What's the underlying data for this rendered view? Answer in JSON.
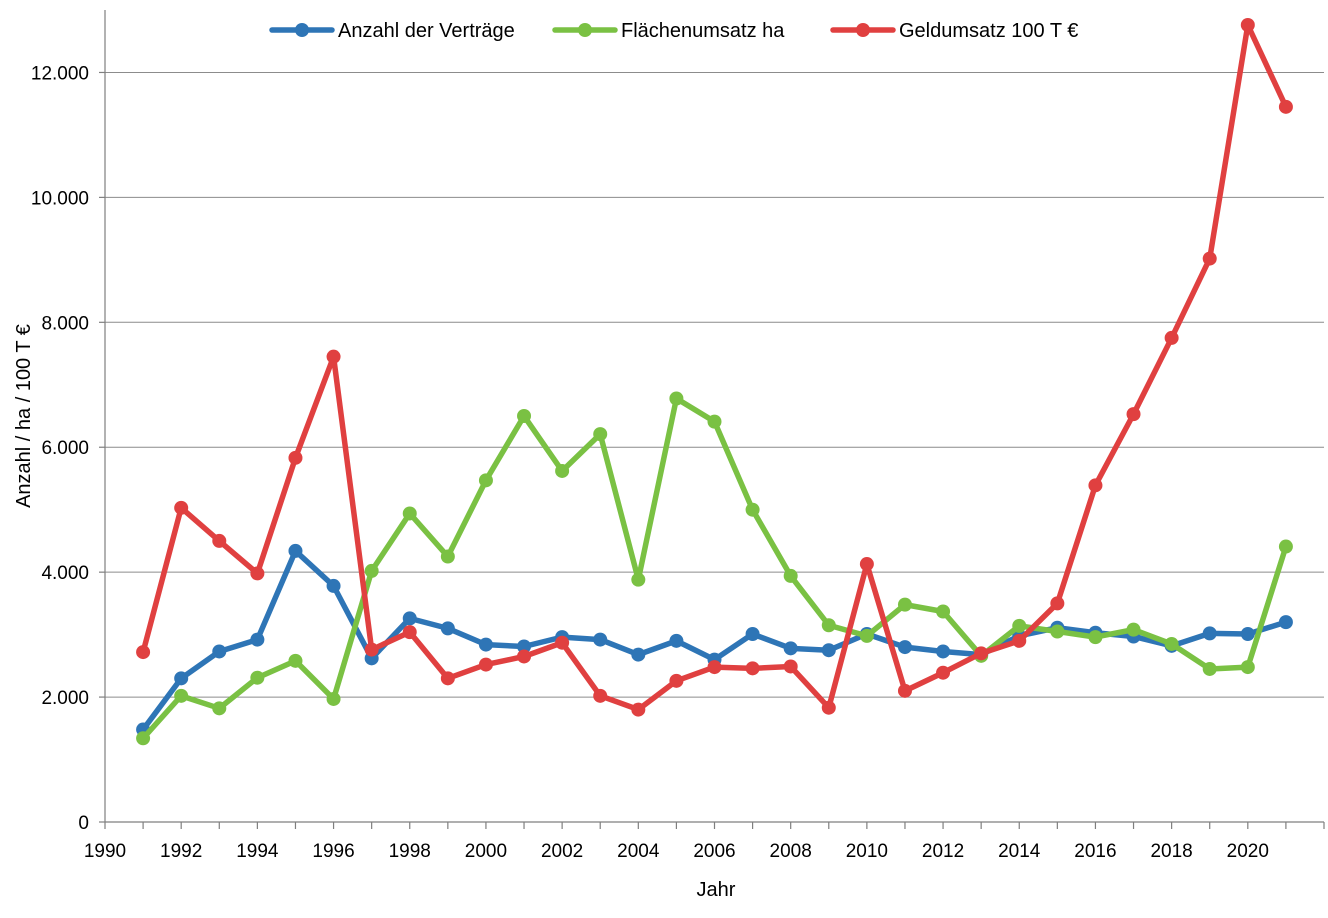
{
  "chart_data": {
    "type": "line",
    "xlabel": "Jahr",
    "ylabel": "Anzahl / ha / 100 T €",
    "xlim": [
      1990,
      2022
    ],
    "ylim": [
      0,
      13000
    ],
    "x_ticks": [
      1990,
      1992,
      1994,
      1996,
      1998,
      2000,
      2002,
      2004,
      2006,
      2008,
      2010,
      2012,
      2014,
      2016,
      2018,
      2020
    ],
    "x_tick_labels": [
      "1990",
      "1992",
      "1994",
      "1996",
      "1998",
      "2000",
      "2002",
      "2004",
      "2006",
      "2008",
      "2010",
      "2012",
      "2014",
      "2016",
      "2018",
      "2020"
    ],
    "y_ticks": [
      0,
      2000,
      4000,
      6000,
      8000,
      10000,
      12000
    ],
    "y_tick_labels": [
      "0",
      "2.000",
      "4.000",
      "6.000",
      "8.000",
      "10.000",
      "12.000"
    ],
    "grid": "horizontal",
    "legend_position": "top",
    "x": [
      1991,
      1992,
      1993,
      1994,
      1995,
      1996,
      1997,
      1998,
      1999,
      2000,
      2001,
      2002,
      2003,
      2004,
      2005,
      2006,
      2007,
      2008,
      2009,
      2010,
      2011,
      2012,
      2013,
      2014,
      2015,
      2016,
      2017,
      2018,
      2019,
      2020,
      2021
    ],
    "series": [
      {
        "name": "Anzahl der Verträge",
        "color": "#2e75b6",
        "values": [
          1480,
          2300,
          2730,
          2920,
          4340,
          3780,
          2620,
          3260,
          3100,
          2840,
          2810,
          2960,
          2920,
          2680,
          2900,
          2600,
          3010,
          2780,
          2750,
          3010,
          2800,
          2730,
          2680,
          2980,
          3110,
          3030,
          2970,
          2820,
          3020,
          3010,
          3200
        ]
      },
      {
        "name": "Flächenumsatz ha",
        "color": "#7ac143",
        "values": [
          1340,
          2020,
          1820,
          2310,
          2580,
          1970,
          4020,
          4940,
          4250,
          5470,
          6500,
          5620,
          6210,
          3880,
          6780,
          6410,
          5000,
          3940,
          3150,
          2980,
          3480,
          3370,
          2660,
          3140,
          3050,
          2960,
          3080,
          2850,
          2450,
          2480,
          4410
        ]
      },
      {
        "name": "Geldumsatz 100 T €",
        "color": "#e04040",
        "values": [
          2720,
          5030,
          4500,
          3980,
          5830,
          7450,
          2760,
          3040,
          2300,
          2520,
          2650,
          2870,
          2020,
          1800,
          2260,
          2480,
          2460,
          2490,
          1830,
          4130,
          2100,
          2390,
          2700,
          2900,
          3500,
          5390,
          6530,
          7750,
          9020,
          12760,
          11450
        ]
      }
    ]
  }
}
